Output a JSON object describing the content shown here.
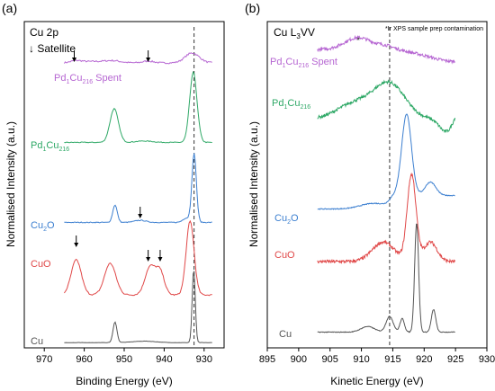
{
  "chart_data": [
    {
      "type": "line",
      "panel_label": "(a)",
      "title": "Cu 2p",
      "xlabel": "Binding Energy (eV)",
      "ylabel": "Normalised Intensity (a.u.)",
      "xlim": [
        975,
        925
      ],
      "x_reversed": true,
      "xticks": [
        970,
        960,
        950,
        940,
        930
      ],
      "grid": false,
      "legend_note": "↓ Satellite",
      "dashed_line_x": 932.5,
      "series": [
        {
          "name": "Pd1Cu216 Spent",
          "label_main": "Pd",
          "label_sub1": "1",
          "label_mid": "Cu",
          "label_sub2": "216",
          "label_tail": " Spent",
          "color": "#b666d2"
        },
        {
          "name": "Pd1Cu216",
          "label_main": "Pd",
          "label_sub1": "1",
          "label_mid": "Cu",
          "label_sub2": "216",
          "label_tail": "",
          "color": "#2ea866"
        },
        {
          "name": "Cu2O",
          "label_main": "Cu",
          "label_sub1": "2",
          "label_mid": "O",
          "label_sub2": "",
          "label_tail": "",
          "color": "#3c7fd0"
        },
        {
          "name": "CuO",
          "label_main": "CuO",
          "label_sub1": "",
          "label_mid": "",
          "label_sub2": "",
          "label_tail": "",
          "color": "#e04848"
        },
        {
          "name": "Cu",
          "label_main": "Cu",
          "label_sub1": "",
          "label_mid": "",
          "label_sub2": "",
          "label_tail": "",
          "color": "#555555"
        }
      ],
      "satellite_arrows": [
        {
          "series": "Pd1Cu216 Spent",
          "x": 962.5
        },
        {
          "series": "Pd1Cu216 Spent",
          "x": 944
        },
        {
          "series": "Cu2O",
          "x": 946
        },
        {
          "series": "CuO",
          "x": 962
        },
        {
          "series": "CuO",
          "x": 944
        },
        {
          "series": "CuO",
          "x": 941
        }
      ]
    },
    {
      "type": "line",
      "panel_label": "(b)",
      "title": "Cu L3VV",
      "title_main": "Cu L",
      "title_sub": "3",
      "title_tail": "VV",
      "xlabel": "Kinetic Energy (eV)",
      "ylabel": "Normalised Intensity (a.u.)",
      "xlim": [
        895,
        930
      ],
      "xticks": [
        895,
        900,
        905,
        910,
        915,
        920,
        925,
        930
      ],
      "grid": false,
      "annotation": "*Ir XPS sample prep contamination",
      "star_marker_x": 909.5,
      "dashed_line_x": 914.5,
      "series": [
        {
          "name": "Pd1Cu216 Spent",
          "label_main": "Pd",
          "label_sub1": "1",
          "label_mid": "Cu",
          "label_sub2": "216",
          "label_tail": " Spent",
          "color": "#b666d2"
        },
        {
          "name": "Pd1Cu216",
          "label_main": "Pd",
          "label_sub1": "1",
          "label_mid": "Cu",
          "label_sub2": "216",
          "label_tail": "",
          "color": "#2ea866"
        },
        {
          "name": "Cu2O",
          "label_main": "Cu",
          "label_sub1": "2",
          "label_mid": "O",
          "label_sub2": "",
          "label_tail": "",
          "color": "#3c7fd0"
        },
        {
          "name": "CuO",
          "label_main": "CuO",
          "label_sub1": "",
          "label_mid": "",
          "label_sub2": "",
          "label_tail": "",
          "color": "#e04848"
        },
        {
          "name": "Cu",
          "label_main": "Cu",
          "label_sub1": "",
          "label_mid": "",
          "label_sub2": "",
          "label_tail": "",
          "color": "#555555"
        }
      ]
    }
  ]
}
